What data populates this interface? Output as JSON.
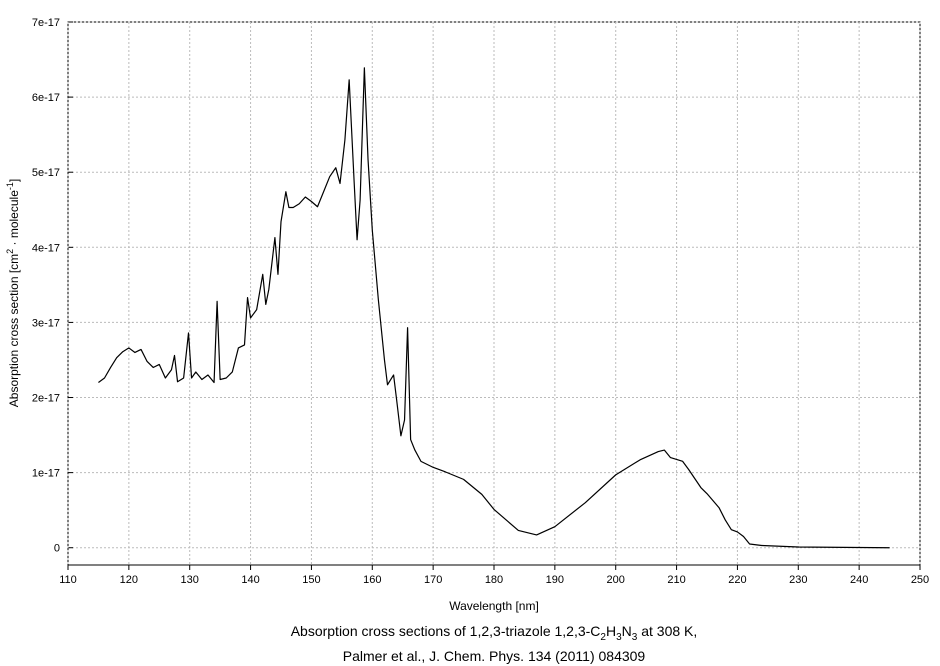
{
  "chart_data": {
    "type": "line",
    "ylabel": [
      "Absorption cross section [cm",
      "2",
      " · molecule",
      "-1",
      "]"
    ],
    "xlabel": "Wavelength [nm]",
    "caption": [
      [
        "Absorption cross sections of 1,2,3-triazole 1,2,3-C",
        "2",
        "H",
        "3",
        "N",
        "3",
        " at 308 K,"
      ],
      "Palmer et al., J. Chem. Phys. 134 (2011) 084309"
    ],
    "xlim": [
      110,
      250
    ],
    "xticks": [
      110,
      120,
      130,
      140,
      150,
      160,
      170,
      180,
      190,
      200,
      210,
      220,
      230,
      240,
      250
    ],
    "ylim": [
      -2.3e-18,
      7e-17
    ],
    "yticks": [
      0,
      1e-17,
      2e-17,
      3e-17,
      4e-17,
      5e-17,
      6e-17,
      7e-17
    ],
    "grid": true,
    "color": "#000000",
    "x": [
      115,
      116,
      117,
      118,
      119,
      120,
      121,
      122,
      123,
      124,
      125,
      126,
      127,
      127.5,
      128,
      129,
      129.8,
      130.3,
      131,
      132,
      133,
      134,
      134.5,
      135,
      136,
      137,
      138,
      139,
      139.5,
      140,
      141,
      142,
      142.5,
      143,
      144,
      144.5,
      145,
      145.8,
      146.3,
      147,
      148,
      149,
      150,
      151,
      152,
      153,
      154,
      154.7,
      155.5,
      156.2,
      157,
      157.5,
      158,
      158.7,
      159.3,
      160,
      161,
      162,
      162.5,
      163.5,
      164,
      164.7,
      165.3,
      165.8,
      166.3,
      167,
      168,
      170,
      172,
      175,
      178,
      180,
      182,
      184,
      187,
      190,
      195,
      200,
      204,
      207,
      208,
      209,
      211,
      212,
      214,
      215,
      217,
      218,
      219,
      220,
      221,
      222,
      224,
      230,
      245
    ],
    "values": [
      2.2e-17,
      2.26e-17,
      2.4e-17,
      2.53e-17,
      2.61e-17,
      2.66e-17,
      2.6e-17,
      2.64e-17,
      2.48e-17,
      2.4e-17,
      2.44e-17,
      2.26e-17,
      2.37e-17,
      2.56e-17,
      2.21e-17,
      2.26e-17,
      2.86e-17,
      2.26e-17,
      2.34e-17,
      2.24e-17,
      2.3e-17,
      2.2e-17,
      3.28e-17,
      2.24e-17,
      2.26e-17,
      2.34e-17,
      2.66e-17,
      2.7e-17,
      3.33e-17,
      3.06e-17,
      3.17e-17,
      3.64e-17,
      3.24e-17,
      3.44e-17,
      4.13e-17,
      3.64e-17,
      4.34e-17,
      4.74e-17,
      4.53e-17,
      4.53e-17,
      4.58e-17,
      4.67e-17,
      4.61e-17,
      4.54e-17,
      4.74e-17,
      4.94e-17,
      5.06e-17,
      4.85e-17,
      5.43e-17,
      6.23e-17,
      4.9e-17,
      4.1e-17,
      4.63e-17,
      6.39e-17,
      5.17e-17,
      4.23e-17,
      3.3e-17,
      2.5e-17,
      2.17e-17,
      2.3e-17,
      1.97e-17,
      1.49e-17,
      1.7e-17,
      2.93e-17,
      1.44e-17,
      1.3e-17,
      1.15e-17,
      1.07e-17,
      1.01e-17,
      9.1e-18,
      7.1e-18,
      5.1e-18,
      3.7e-18,
      2.3e-18,
      1.7e-18,
      2.8e-18,
      6e-18,
      9.7e-18,
      1.17e-17,
      1.28e-17,
      1.3e-17,
      1.2e-17,
      1.15e-17,
      1.04e-17,
      8e-18,
      7.2e-18,
      5.3e-18,
      3.7e-18,
      2.4e-18,
      2.1e-18,
      1.5e-18,
      5e-19,
      3e-19,
      1e-19,
      0
    ]
  }
}
